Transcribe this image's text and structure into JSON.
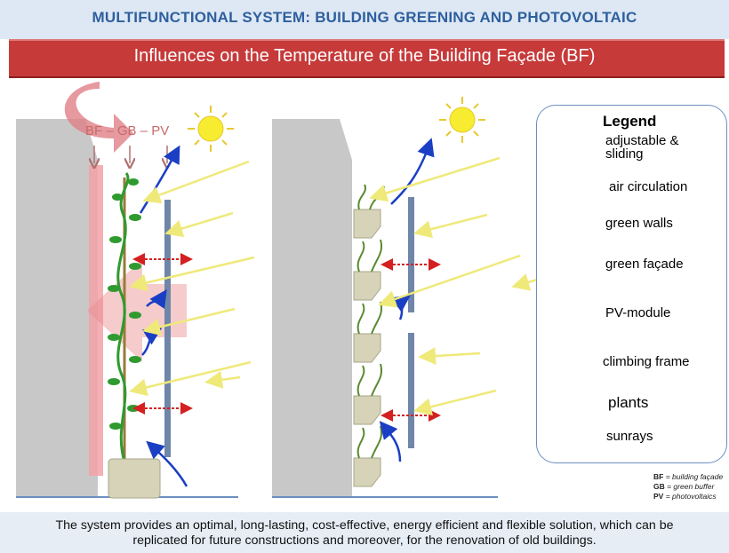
{
  "header": {
    "title": "MULTIFUNCTIONAL SYSTEM: BUILDING GREENING AND PHOTOVOLTAIC",
    "subtitle": "Influences on the Temperature of the Building Façade (BF)"
  },
  "diagram": {
    "layer_labels": "BF – GB – PV"
  },
  "legend": {
    "title": "Legend",
    "items": [
      {
        "label": "adjustable & sliding",
        "icon": "adjustable-sliding-arrow-icon"
      },
      {
        "label": "air circulation",
        "icon": "air-circulation-arrow-icon"
      },
      {
        "label": "green walls",
        "icon": "green-wall-module-icon"
      },
      {
        "label": "green façade",
        "icon": "green-facade-planter-icon"
      },
      {
        "label": "PV-module",
        "icon": "pv-module-bar-icon"
      },
      {
        "label": "climbing frame",
        "icon": "climbing-frame-bar-icon"
      },
      {
        "label": "plants",
        "icon": "plant-icon"
      },
      {
        "label": "sunrays",
        "icon": "sunray-arrow-icon"
      }
    ]
  },
  "abbreviations": [
    {
      "abbr": "BF",
      "text": " = building façade"
    },
    {
      "abbr": "GB",
      "text": " = green buffer"
    },
    {
      "abbr": "PV",
      "text": " = photovoltaics"
    }
  ],
  "footer": {
    "line1": "The system provides an optimal, long-lasting, cost-effective, energy efficient and flexible solution, which can be",
    "line2": "replicated for future constructions and moreover, for the renovation of old buildings."
  },
  "colors": {
    "title": "#2e5f9e",
    "subtitle_bar": "#c73a3a",
    "building": "#c8c8c8",
    "pv_module": "#6f86a8",
    "planter": "#d6d3b8",
    "sun": "#f7ec30",
    "sunray": "#efe97a",
    "air_arrow": "#1a3fc4",
    "sliding_arrow": "#d42020",
    "plant": "#2f9a2f"
  }
}
